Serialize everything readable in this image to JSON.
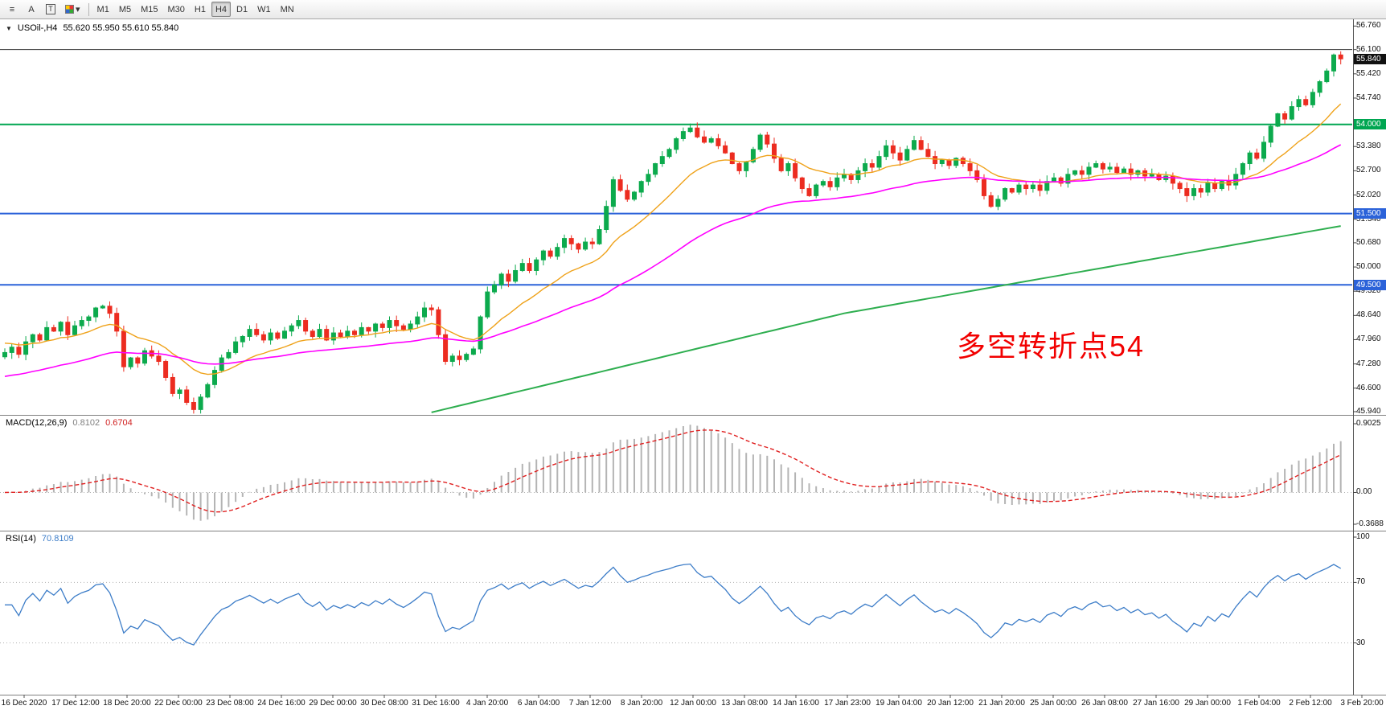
{
  "toolbar": {
    "icon_buttons": [
      {
        "name": "cursor-lines-icon",
        "glyph": "≡"
      },
      {
        "name": "text-label-icon",
        "glyph": "A"
      },
      {
        "name": "text-box-icon",
        "glyph": "T"
      },
      {
        "name": "indicator-palette-icon",
        "glyph": "▾"
      }
    ],
    "timeframes": [
      "M1",
      "M5",
      "M15",
      "M30",
      "H1",
      "H4",
      "D1",
      "W1",
      "MN"
    ],
    "active_timeframe": "H4"
  },
  "main_chart": {
    "symbol_timeframe": "USOil-,H4",
    "ohlc_text": "55.620 55.950 55.610 55.840",
    "annotation": "多空转折点54",
    "annotation_color": "#f20000"
  },
  "macd_header": {
    "label": "MACD(12,26,9)",
    "value_main": "0.8102",
    "value_signal": "0.6704"
  },
  "rsi_header": {
    "label": "RSI(14)",
    "value": "70.8109"
  },
  "chart_data": {
    "type": "candlestick",
    "symbol": "USOil-",
    "timeframe": "H4",
    "last_ohlc": {
      "open": 55.62,
      "high": 55.95,
      "low": 55.61,
      "close": 55.84
    },
    "price_range": [
      45.85,
      56.95
    ],
    "price_axis_ticks": [
      "56.760",
      "56.100",
      "55.420",
      "54.740",
      "53.380",
      "52.700",
      "52.020",
      "51.340",
      "50.680",
      "50.000",
      "49.320",
      "48.640",
      "47.960",
      "47.280",
      "46.600",
      "45.940"
    ],
    "last_price_marker": {
      "price": 55.84,
      "label": "55.840",
      "color": "#111111"
    },
    "horizontal_lines": [
      {
        "price": 56.1,
        "color": "#333333",
        "width": 1,
        "label": null,
        "badge_color": null
      },
      {
        "price": 54.0,
        "color": "#00a651",
        "width": 2,
        "label": "54.000",
        "badge_color": "#00a651"
      },
      {
        "price": 51.5,
        "color": "#2b62d9",
        "width": 2,
        "label": "51.500",
        "badge_color": "#2b62d9"
      },
      {
        "price": 49.5,
        "color": "#2b62d9",
        "width": 2,
        "label": "49.500",
        "badge_color": "#2b62d9"
      }
    ],
    "candle_colors": {
      "up": "#0caa4d",
      "down": "#ec2c20"
    },
    "wick_seed": 7,
    "closes": [
      47.6,
      47.75,
      47.55,
      47.9,
      48.1,
      47.95,
      48.3,
      48.2,
      48.45,
      48.1,
      48.35,
      48.5,
      48.6,
      48.85,
      48.9,
      48.7,
      48.2,
      47.2,
      47.45,
      47.3,
      47.65,
      47.5,
      47.35,
      46.9,
      46.45,
      46.55,
      46.2,
      46.0,
      46.35,
      46.7,
      47.1,
      47.45,
      47.6,
      47.9,
      48.05,
      48.25,
      48.1,
      47.95,
      48.15,
      48.0,
      48.2,
      48.35,
      48.5,
      48.2,
      48.05,
      48.25,
      47.95,
      48.15,
      48.05,
      48.2,
      48.1,
      48.3,
      48.2,
      48.4,
      48.3,
      48.5,
      48.35,
      48.25,
      48.4,
      48.6,
      48.85,
      48.8,
      48.1,
      47.35,
      47.5,
      47.4,
      47.55,
      47.7,
      48.6,
      49.3,
      49.5,
      49.8,
      49.6,
      49.9,
      50.1,
      49.9,
      50.2,
      50.45,
      50.3,
      50.55,
      50.8,
      50.65,
      50.5,
      50.7,
      50.65,
      51.05,
      51.7,
      52.45,
      52.15,
      51.9,
      52.1,
      52.4,
      52.6,
      52.9,
      53.1,
      53.3,
      53.6,
      53.8,
      53.9,
      53.65,
      53.5,
      53.6,
      53.4,
      53.2,
      52.9,
      52.7,
      52.95,
      53.3,
      53.7,
      53.45,
      53.05,
      52.7,
      52.9,
      52.5,
      52.2,
      52.0,
      52.3,
      52.4,
      52.25,
      52.5,
      52.6,
      52.45,
      52.7,
      52.9,
      52.8,
      53.1,
      53.4,
      53.2,
      53.0,
      53.3,
      53.55,
      53.3,
      53.1,
      52.9,
      53.0,
      52.85,
      53.05,
      52.9,
      52.7,
      52.45,
      52.0,
      51.7,
      51.9,
      52.2,
      52.1,
      52.3,
      52.2,
      52.3,
      52.15,
      52.4,
      52.5,
      52.35,
      52.6,
      52.7,
      52.6,
      52.8,
      52.9,
      52.75,
      52.8,
      52.65,
      52.75,
      52.6,
      52.7,
      52.55,
      52.6,
      52.45,
      52.55,
      52.35,
      52.2,
      52.0,
      52.2,
      52.1,
      52.35,
      52.2,
      52.4,
      52.3,
      52.6,
      52.9,
      53.2,
      53.05,
      53.5,
      53.95,
      54.3,
      54.15,
      54.5,
      54.7,
      54.55,
      54.9,
      55.2,
      55.5,
      55.95,
      55.84
    ],
    "moving_averages": [
      {
        "name": "fast",
        "period": 15,
        "init": 47.9,
        "color": "#efa21a",
        "width": 1.4
      },
      {
        "name": "slow",
        "period": 48,
        "init": 46.9,
        "color": "#ff00ff",
        "width": 1.6
      },
      {
        "name": "long",
        "color": "#2eae4f",
        "width": 2,
        "anchors": [
          [
            61,
            45.92
          ],
          [
            120,
            48.7
          ],
          [
            191,
            51.15
          ]
        ]
      }
    ],
    "indicators": {
      "macd": {
        "label": "MACD(12,26,9)",
        "fast": 12,
        "slow": 26,
        "signal": 9,
        "value_main": "0.8102",
        "value_signal": "0.6704",
        "axis_labels": [
          "0.9025",
          "0.00",
          "-0.3688"
        ],
        "histogram_color": "#b4b4b4",
        "signal_color": "#e02020"
      },
      "rsi": {
        "label": "RSI(14)",
        "period": 14,
        "value": "70.8109",
        "levels": [
          70,
          30
        ],
        "axis_labels": [
          "100",
          "70",
          "30"
        ],
        "color": "#3d7dc8"
      }
    },
    "time_labels": [
      "16 Dec 2020",
      "17 Dec 12:00",
      "18 Dec 20:00",
      "22 Dec 00:00",
      "23 Dec 08:00",
      "24 Dec 16:00",
      "29 Dec 00:00",
      "30 Dec 08:00",
      "31 Dec 16:00",
      "4 Jan 20:00",
      "6 Jan 04:00",
      "7 Jan 12:00",
      "8 Jan 20:00",
      "12 Jan 00:00",
      "13 Jan 08:00",
      "14 Jan 16:00",
      "17 Jan 23:00",
      "19 Jan 04:00",
      "20 Jan 12:00",
      "21 Jan 20:00",
      "25 Jan 00:00",
      "26 Jan 08:00",
      "27 Jan 16:00",
      "29 Jan 00:00",
      "1 Feb 04:00",
      "2 Feb 12:00",
      "3 Feb 20:00"
    ]
  }
}
